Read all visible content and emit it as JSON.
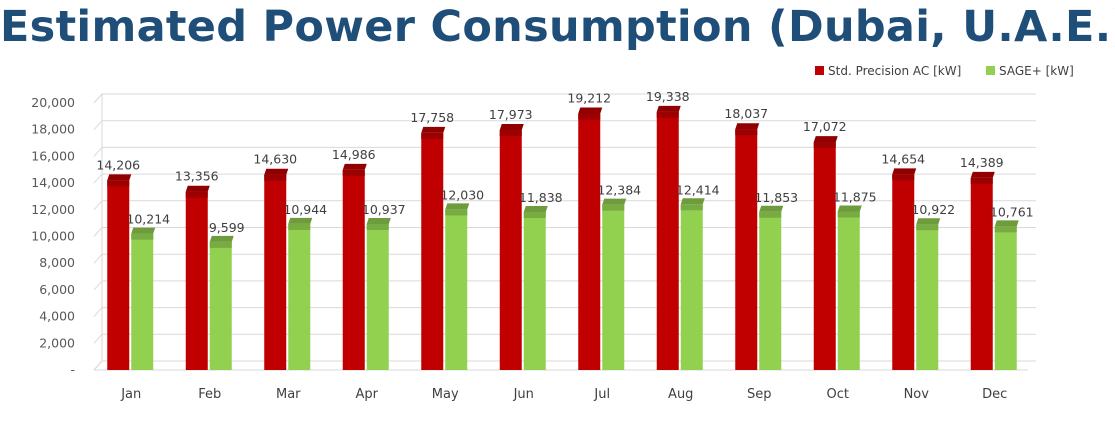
{
  "title": "Estimated Power Consumption (Dubai, U.A.E.)",
  "chart_data": {
    "type": "bar",
    "title": "Estimated Power Consumption (Dubai, U.A.E.)",
    "categories": [
      "Jan",
      "Feb",
      "Mar",
      "Apr",
      "May",
      "Jun",
      "Jul",
      "Aug",
      "Sep",
      "Oct",
      "Nov",
      "Dec"
    ],
    "series": [
      {
        "name": "Std. Precision AC [kW]",
        "values": [
          14206,
          13356,
          14630,
          14986,
          17758,
          17973,
          19212,
          19338,
          18037,
          17072,
          14654,
          14389
        ],
        "labels": [
          "14,206",
          "13,356",
          "14,630",
          "14,986",
          "17,758",
          "17,973",
          "19,212",
          "19,338",
          "18,037",
          "17,072",
          "14,654",
          "14,389"
        ],
        "color": "#c00000"
      },
      {
        "name": "SAGE+ [kW]",
        "values": [
          10214,
          9599,
          10944,
          10937,
          12030,
          11838,
          12384,
          12414,
          11853,
          11875,
          10922,
          10761
        ],
        "labels": [
          "10,214",
          "9,599",
          "10,944",
          "10,937",
          "12,030",
          "11,838",
          "12,384",
          "12,414",
          "11,853",
          "11,875",
          "10,922",
          "10,761"
        ],
        "color": "#92d050"
      }
    ],
    "y_ticks": [
      0,
      2000,
      4000,
      6000,
      8000,
      10000,
      12000,
      14000,
      16000,
      18000,
      20000
    ],
    "y_tick_labels": [
      "-",
      "2,000",
      "4,000",
      "6,000",
      "8,000",
      "10,000",
      "12,000",
      "14,000",
      "16,000",
      "18,000",
      "20,000"
    ],
    "ylim": [
      0,
      20000
    ],
    "xlabel": "",
    "ylabel": "",
    "grid": true,
    "legend": "top-right"
  }
}
